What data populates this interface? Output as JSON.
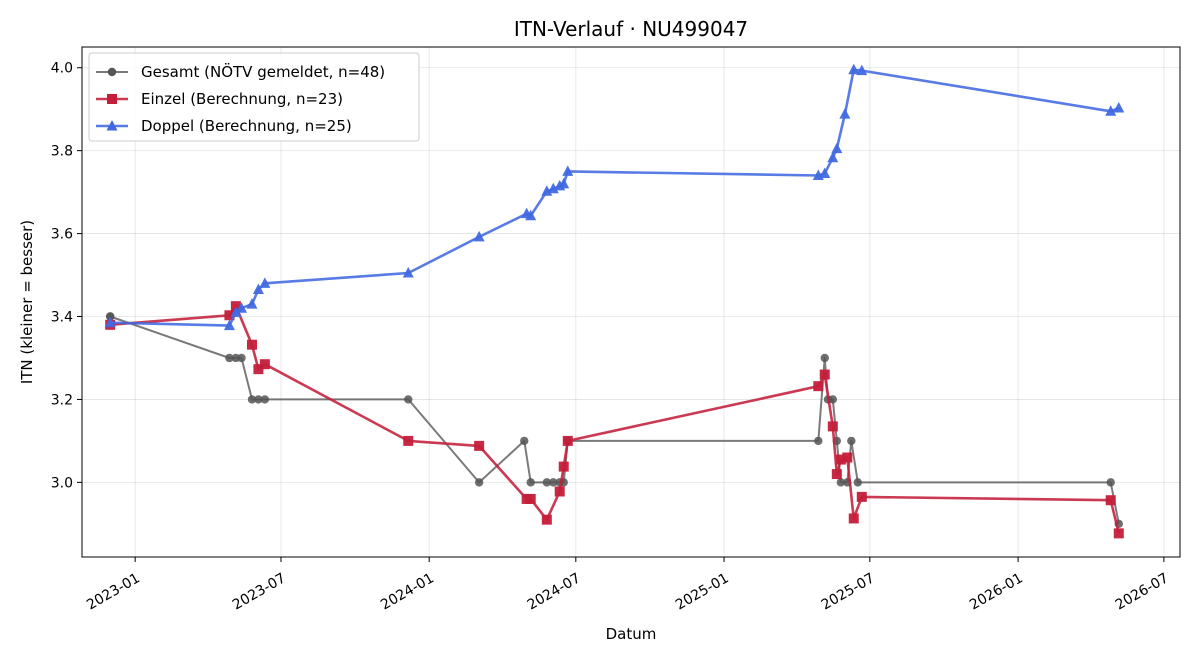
{
  "chart_data": {
    "type": "line",
    "title": "ITN-Verlauf · NU499047",
    "xlabel": "Datum",
    "ylabel": "ITN  (kleiner = besser)",
    "x_axis": {
      "kind": "date",
      "range": [
        "2022-10-27",
        "2026-07-21"
      ],
      "ticks": [
        "2023-01-01",
        "2023-07-01",
        "2024-01-01",
        "2024-07-01",
        "2025-01-01",
        "2025-07-01",
        "2026-01-01",
        "2026-07-01"
      ],
      "tick_labels": [
        "2023-01",
        "2023-07",
        "2024-01",
        "2024-07",
        "2025-01",
        "2025-07",
        "2026-01",
        "2026-07"
      ]
    },
    "y_axis": {
      "range": [
        2.82,
        4.05
      ],
      "ticks": [
        3.0,
        3.2,
        3.4,
        3.6,
        3.8,
        4.0
      ],
      "tick_labels": [
        "3.0",
        "3.2",
        "3.4",
        "3.6",
        "3.8",
        "4.0"
      ]
    },
    "grid": true,
    "legend_position": "top-left",
    "series": [
      {
        "name": "Gesamt (NÖTV gemeldet, n=48)",
        "color": "#555555",
        "marker": "circle",
        "points": [
          [
            "2022-12-01",
            3.4
          ],
          [
            "2022-12-01",
            3.4
          ],
          [
            "2023-04-28",
            3.3
          ],
          [
            "2023-05-06",
            3.3
          ],
          [
            "2023-05-13",
            3.3
          ],
          [
            "2023-05-26",
            3.2
          ],
          [
            "2023-06-03",
            3.2
          ],
          [
            "2023-06-11",
            3.2
          ],
          [
            "2023-12-06",
            3.2
          ],
          [
            "2024-03-03",
            3.0
          ],
          [
            "2024-04-28",
            3.1
          ],
          [
            "2024-05-06",
            3.0
          ],
          [
            "2024-05-26",
            3.0
          ],
          [
            "2024-06-03",
            3.0
          ],
          [
            "2024-06-11",
            3.0
          ],
          [
            "2024-06-16",
            3.0
          ],
          [
            "2024-06-21",
            3.1
          ],
          [
            "2025-04-28",
            3.1
          ],
          [
            "2025-05-06",
            3.3
          ],
          [
            "2025-05-10",
            3.2
          ],
          [
            "2025-05-16",
            3.2
          ],
          [
            "2025-05-21",
            3.1
          ],
          [
            "2025-05-26",
            3.0
          ],
          [
            "2025-06-03",
            3.0
          ],
          [
            "2025-06-08",
            3.1
          ],
          [
            "2025-06-16",
            3.0
          ],
          [
            "2026-04-26",
            3.0
          ],
          [
            "2026-05-06",
            2.9
          ]
        ]
      },
      {
        "name": "Einzel (Berechnung, n=23)",
        "color": "#c41e3a",
        "marker": "square",
        "points": [
          [
            "2022-12-01",
            3.38
          ],
          [
            "2023-04-28",
            3.403
          ],
          [
            "2023-05-06",
            3.425
          ],
          [
            "2023-05-26",
            3.332
          ],
          [
            "2023-06-03",
            3.273
          ],
          [
            "2023-06-11",
            3.285
          ],
          [
            "2023-12-06",
            3.1
          ],
          [
            "2024-03-03",
            3.088
          ],
          [
            "2024-05-01",
            2.96
          ],
          [
            "2024-05-06",
            2.96
          ],
          [
            "2024-05-26",
            2.91
          ],
          [
            "2024-06-11",
            2.978
          ],
          [
            "2024-06-16",
            3.038
          ],
          [
            "2024-06-21",
            3.1
          ],
          [
            "2025-04-28",
            3.232
          ],
          [
            "2025-05-06",
            3.26
          ],
          [
            "2025-05-16",
            3.135
          ],
          [
            "2025-05-21",
            3.02
          ],
          [
            "2025-05-26",
            3.055
          ],
          [
            "2025-06-03",
            3.06
          ],
          [
            "2025-06-11",
            2.913
          ],
          [
            "2025-06-21",
            2.965
          ],
          [
            "2026-04-26",
            2.957
          ],
          [
            "2026-05-06",
            2.877
          ]
        ]
      },
      {
        "name": "Doppel (Berechnung, n=25)",
        "color": "#4169e1",
        "marker": "triangle",
        "points": [
          [
            "2022-12-01",
            3.385
          ],
          [
            "2023-04-28",
            3.378
          ],
          [
            "2023-05-06",
            3.41
          ],
          [
            "2023-05-13",
            3.42
          ],
          [
            "2023-05-26",
            3.43
          ],
          [
            "2023-06-03",
            3.465
          ],
          [
            "2023-06-11",
            3.48
          ],
          [
            "2023-12-06",
            3.505
          ],
          [
            "2024-03-03",
            3.592
          ],
          [
            "2024-05-01",
            3.648
          ],
          [
            "2024-05-06",
            3.643
          ],
          [
            "2024-05-26",
            3.702
          ],
          [
            "2024-06-03",
            3.708
          ],
          [
            "2024-06-11",
            3.715
          ],
          [
            "2024-06-16",
            3.72
          ],
          [
            "2024-06-21",
            3.75
          ],
          [
            "2025-04-28",
            3.74
          ],
          [
            "2025-05-06",
            3.745
          ],
          [
            "2025-05-16",
            3.783
          ],
          [
            "2025-05-21",
            3.805
          ],
          [
            "2025-05-31",
            3.888
          ],
          [
            "2025-06-11",
            3.995
          ],
          [
            "2025-06-21",
            3.993
          ],
          [
            "2026-04-26",
            3.895
          ],
          [
            "2026-05-06",
            3.903
          ]
        ]
      }
    ]
  }
}
